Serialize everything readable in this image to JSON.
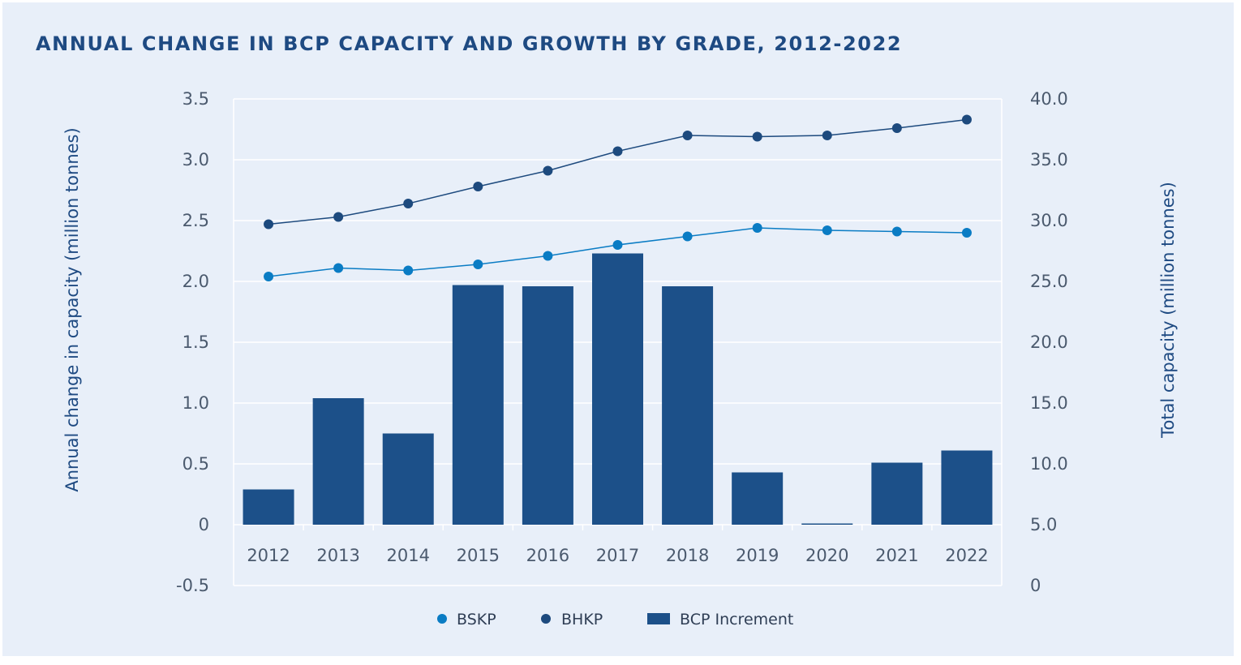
{
  "colors": {
    "bar": "#1c5089",
    "bskp": "#0a7cc4",
    "bhkp": "#1d4a7e",
    "grid": "#ffffff",
    "title": "#1e4a82",
    "panel": "#e8eff9"
  },
  "chart_data": {
    "type": "bar",
    "title": "ANNUAL CHANGE IN BCP CAPACITY AND GROWTH BY GRADE, 2012-2022",
    "categories": [
      "2012",
      "2013",
      "2014",
      "2015",
      "2016",
      "2017",
      "2018",
      "2019",
      "2020",
      "2021",
      "2022"
    ],
    "ylabel": "Annual change in capacity (million tonnes)",
    "y2label": "Total capacity (million tonnes)",
    "ylim": [
      -0.5,
      3.5
    ],
    "y2lim": [
      0,
      40
    ],
    "yticks": [
      "3.5",
      "3.0",
      "2.5",
      "2.0",
      "1.5",
      "1.0",
      "0.5",
      "0",
      "-0.5"
    ],
    "y2ticks": [
      "40.0",
      "35.0",
      "30.0",
      "25.0",
      "20.0",
      "15.0",
      "10.0",
      "5.0",
      "0"
    ],
    "grid": true,
    "legend_position": "bottom",
    "legend": [
      "BSKP",
      "BHKP",
      "BCP Increment"
    ],
    "series": [
      {
        "name": "BCP Increment",
        "type": "bar",
        "axis": "left",
        "values": [
          0.29,
          1.04,
          0.75,
          1.97,
          1.96,
          2.23,
          1.96,
          0.43,
          0.01,
          0.51,
          0.61
        ]
      },
      {
        "name": "BSKP",
        "type": "line",
        "axis": "right",
        "values": [
          25.4,
          26.1,
          25.9,
          26.4,
          27.1,
          28.0,
          28.7,
          29.4,
          29.2,
          29.1,
          29.0
        ]
      },
      {
        "name": "BHKP",
        "type": "line",
        "axis": "right",
        "values": [
          29.7,
          30.3,
          31.4,
          32.8,
          34.1,
          35.7,
          37.0,
          36.9,
          37.0,
          37.6,
          38.3
        ]
      }
    ]
  }
}
